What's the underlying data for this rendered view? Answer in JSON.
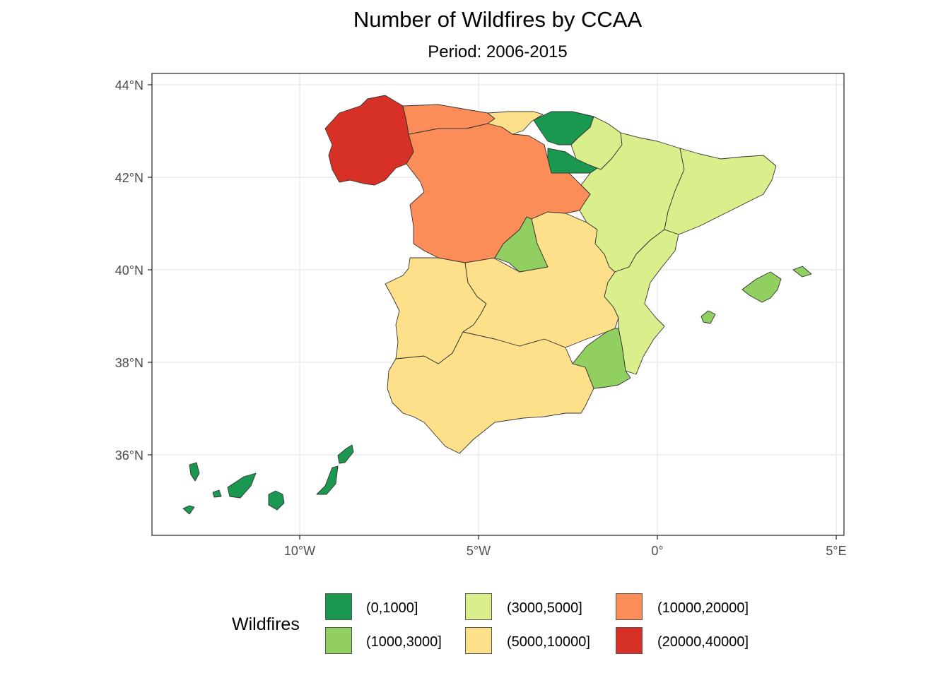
{
  "title": "Number of Wildfires by CCAA",
  "subtitle": "Period: 2006-2015",
  "axes": {
    "y_ticks": [
      "44°N",
      "42°N",
      "40°N",
      "38°N",
      "36°N"
    ],
    "x_ticks": [
      "10°W",
      "5°W",
      "0°",
      "5°E"
    ]
  },
  "legend": {
    "title": "Wildfires",
    "items": [
      {
        "label": "(0,1000]",
        "color": "#1a9850"
      },
      {
        "label": "(1000,3000]",
        "color": "#91cf60"
      },
      {
        "label": "(3000,5000]",
        "color": "#d9ef8b"
      },
      {
        "label": "(5000,10000]",
        "color": "#fee08b"
      },
      {
        "label": "(10000,20000]",
        "color": "#fc8d59"
      },
      {
        "label": "(20000,40000]",
        "color": "#d73027"
      }
    ]
  },
  "regions": [
    {
      "name": "Galicia",
      "class": "(20000,40000]"
    },
    {
      "name": "Asturias",
      "class": "(10000,20000]"
    },
    {
      "name": "Castilla y León",
      "class": "(10000,20000]"
    },
    {
      "name": "Cantabria",
      "class": "(5000,10000]"
    },
    {
      "name": "País Vasco",
      "class": "(0,1000]"
    },
    {
      "name": "La Rioja",
      "class": "(0,1000]"
    },
    {
      "name": "Navarra",
      "class": "(3000,5000]"
    },
    {
      "name": "Aragón",
      "class": "(3000,5000]"
    },
    {
      "name": "Cataluña",
      "class": "(3000,5000]"
    },
    {
      "name": "Comunidad Valenciana",
      "class": "(3000,5000]"
    },
    {
      "name": "Madrid",
      "class": "(1000,3000]"
    },
    {
      "name": "Murcia",
      "class": "(1000,3000]"
    },
    {
      "name": "Islas Baleares",
      "class": "(1000,3000]"
    },
    {
      "name": "Castilla-La Mancha",
      "class": "(5000,10000]"
    },
    {
      "name": "Extremadura",
      "class": "(5000,10000]"
    },
    {
      "name": "Andalucía",
      "class": "(5000,10000]"
    },
    {
      "name": "Canarias",
      "class": "(0,1000]"
    }
  ]
}
